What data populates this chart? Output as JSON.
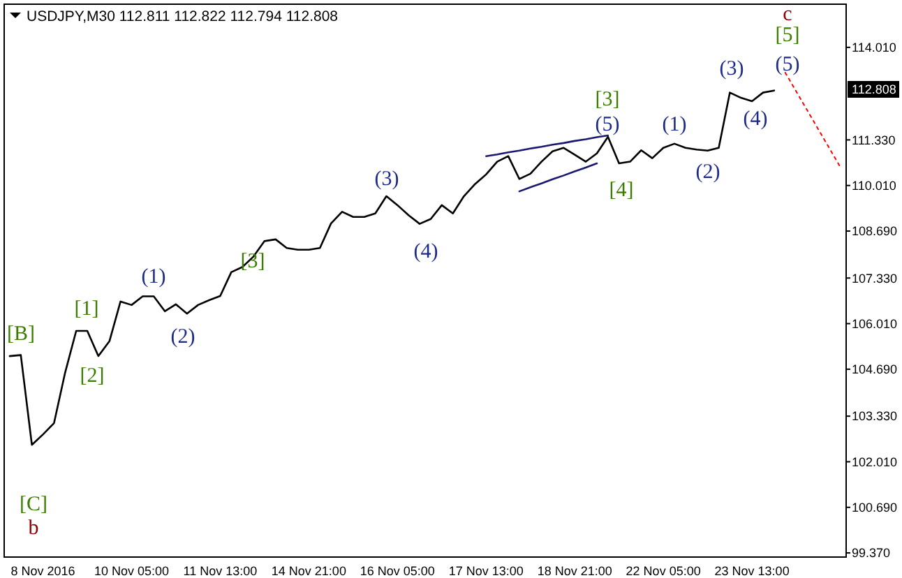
{
  "chart_data": {
    "type": "line",
    "title": "USDJPY,M30  112.811 112.822 112.794 112.808",
    "categories": [
      null,
      null,
      null,
      "8 Nov 2016",
      null,
      null,
      null,
      null,
      null,
      null,
      null,
      "10 Nov 05:00",
      null,
      null,
      null,
      null,
      null,
      null,
      null,
      "11 Nov 13:00",
      null,
      null,
      null,
      null,
      null,
      null,
      null,
      "14 Nov 21:00",
      null,
      null,
      null,
      null,
      null,
      null,
      null,
      "16 Nov 05:00",
      null,
      null,
      null,
      null,
      null,
      null,
      null,
      "17 Nov 13:00",
      null,
      null,
      null,
      null,
      null,
      null,
      null,
      "18 Nov 21:00",
      null,
      null,
      null,
      null,
      null,
      null,
      null,
      "22 Nov 05:00",
      null,
      null,
      null,
      null,
      null,
      null,
      null,
      "23 Nov 13:00",
      null,
      null,
      null,
      null,
      null,
      null,
      null,
      null
    ],
    "ylim": [
      99.25,
      115.26
    ],
    "yticks": [
      {
        "value": 99.37,
        "label": "99.370"
      },
      {
        "value": 100.69,
        "label": "100.690"
      },
      {
        "value": 102.01,
        "label": "102.010"
      },
      {
        "value": 103.33,
        "label": "103.330"
      },
      {
        "value": 104.69,
        "label": "104.690"
      },
      {
        "value": 106.01,
        "label": "106.010"
      },
      {
        "value": 107.33,
        "label": "107.330"
      },
      {
        "value": 108.69,
        "label": "108.690"
      },
      {
        "value": 110.01,
        "label": "110.010"
      },
      {
        "value": 111.33,
        "label": "111.330"
      },
      {
        "value": 114.01,
        "label": "114.010"
      }
    ],
    "grid": false,
    "series": [
      {
        "color": "#000000",
        "values": [
          105.07,
          105.1,
          102.5,
          102.8,
          103.13,
          104.59,
          105.8,
          105.8,
          105.07,
          105.5,
          106.65,
          106.55,
          106.8,
          106.8,
          106.37,
          106.57,
          106.3,
          106.55,
          106.69,
          106.81,
          107.5,
          107.65,
          107.95,
          108.4,
          108.45,
          108.2,
          108.15,
          108.15,
          108.2,
          108.91,
          109.25,
          109.1,
          109.1,
          109.2,
          109.7,
          109.44,
          109.15,
          108.9,
          109.04,
          109.44,
          109.2,
          109.7,
          110.05,
          110.33,
          110.7,
          110.86,
          110.2,
          110.35,
          110.7,
          111.0,
          111.1,
          110.9,
          110.7,
          110.94,
          111.42,
          110.65,
          110.7,
          111.03,
          110.8,
          111.1,
          111.22,
          111.1,
          111.05,
          111.02,
          111.1,
          112.7,
          112.55,
          112.45,
          112.7,
          112.76,
          null,
          null,
          null,
          null,
          null,
          null
        ]
      },
      {
        "color": "#191970",
        "values": [
          null,
          null,
          null,
          null,
          null,
          null,
          null,
          null,
          null,
          null,
          null,
          null,
          null,
          null,
          null,
          null,
          null,
          null,
          null,
          null,
          null,
          null,
          null,
          null,
          null,
          null,
          null,
          null,
          null,
          null,
          null,
          null,
          null,
          null,
          null,
          null,
          null,
          null,
          null,
          null,
          null,
          null,
          null,
          110.86,
          110.91,
          110.97,
          111.02,
          111.08,
          111.13,
          111.19,
          111.24,
          111.3,
          111.35,
          111.41,
          111.46,
          null,
          null,
          null,
          null,
          null,
          null,
          null,
          null,
          null,
          null,
          null,
          null,
          null,
          null,
          null,
          null,
          null,
          null,
          null,
          null,
          null
        ]
      },
      {
        "color": "#191970",
        "values": [
          null,
          null,
          null,
          null,
          null,
          null,
          null,
          null,
          null,
          null,
          null,
          null,
          null,
          null,
          null,
          null,
          null,
          null,
          null,
          null,
          null,
          null,
          null,
          null,
          null,
          null,
          null,
          null,
          null,
          null,
          null,
          null,
          null,
          null,
          null,
          null,
          null,
          null,
          null,
          null,
          null,
          null,
          null,
          null,
          null,
          null,
          109.84,
          109.96,
          110.07,
          110.19,
          110.3,
          110.42,
          110.53,
          110.65,
          null,
          null,
          null,
          null,
          null,
          null,
          null,
          null,
          null,
          null,
          null,
          null,
          null,
          null,
          null,
          null,
          null,
          null,
          null,
          null,
          null,
          null
        ]
      },
      {
        "color": "#ff0000",
        "line_style": "dotted",
        "values": [
          null,
          null,
          null,
          null,
          null,
          null,
          null,
          null,
          null,
          null,
          null,
          null,
          null,
          null,
          null,
          null,
          null,
          null,
          null,
          null,
          null,
          null,
          null,
          null,
          null,
          null,
          null,
          null,
          null,
          null,
          null,
          null,
          null,
          null,
          null,
          null,
          null,
          null,
          null,
          null,
          null,
          null,
          null,
          null,
          null,
          null,
          null,
          null,
          null,
          null,
          null,
          null,
          null,
          null,
          null,
          null,
          null,
          null,
          null,
          null,
          null,
          null,
          null,
          null,
          null,
          null,
          null,
          null,
          null,
          null,
          113.28,
          112.73,
          112.18,
          111.63,
          111.08,
          110.53
        ]
      }
    ],
    "annotations": [
      "112.808",
      "[B]",
      "[1]",
      "[2]",
      "[C]",
      "b",
      "(1)",
      "(2)",
      "[3]",
      "(3)",
      "(4)",
      "[3]",
      "(5)",
      "[4]",
      "(1)",
      "(2)",
      "(3)",
      "(4)",
      "(5)",
      "[5]",
      "c"
    ]
  }
}
